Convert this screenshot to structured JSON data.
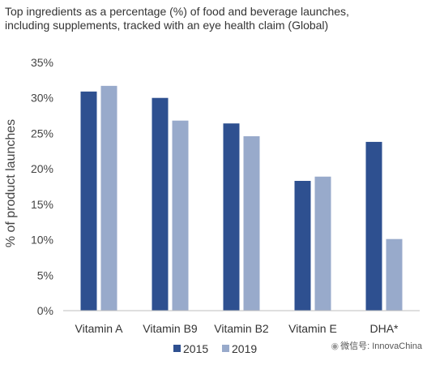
{
  "header": {
    "title_line1": "Top ingredients as a percentage (%) of food and beverage launches,",
    "title_line2": "including supplements, tracked with an eye health claim (Global)"
  },
  "chart_data": {
    "type": "bar",
    "title": "Top ingredients as a percentage (%) of food and beverage launches, including supplements, tracked with an eye health claim (Global)",
    "categories": [
      "Vitamin A",
      "Vitamin B9",
      "Vitamin B2",
      "Vitamin E",
      "DHA*"
    ],
    "series": [
      {
        "name": "2015",
        "color": "#2e5090",
        "values": [
          30.9,
          30.0,
          26.4,
          18.3,
          23.8
        ]
      },
      {
        "name": "2019",
        "color": "#98aacb",
        "values": [
          31.7,
          26.8,
          24.6,
          18.9,
          10.1
        ]
      }
    ],
    "xlabel": "",
    "ylabel": "% of product launches",
    "ylim": [
      0,
      35
    ],
    "yticks": [
      "0%",
      "5%",
      "10%",
      "15%",
      "20%",
      "25%",
      "30%",
      "35%"
    ],
    "grid": false,
    "legend_position": "bottom"
  },
  "watermark": {
    "icon": "wechat-icon",
    "text": "微信号: InnovaChina"
  }
}
